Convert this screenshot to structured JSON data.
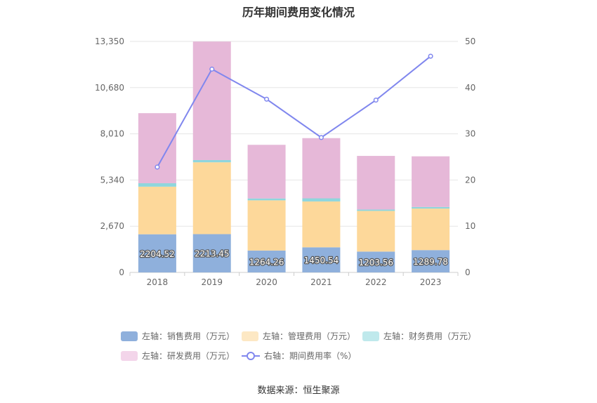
{
  "chart_data": {
    "type": "bar",
    "title": "历年期间费用变化情况",
    "categories": [
      "2018",
      "2019",
      "2020",
      "2021",
      "2022",
      "2023"
    ],
    "y_left": {
      "ticks": [
        "0",
        "2,670",
        "5,340",
        "8,010",
        "10,680",
        "13,350"
      ],
      "range": [
        0,
        13350
      ]
    },
    "y_right": {
      "ticks": [
        "0",
        "10",
        "20",
        "30",
        "40",
        "50"
      ],
      "range": [
        0,
        50
      ]
    },
    "series": [
      {
        "name": "左轴：销售费用（万元）",
        "color": "#8fb0dc",
        "axis": "left",
        "stack": "cost",
        "values": [
          2204.52,
          2213.45,
          1264.26,
          1450.54,
          1203.56,
          1289.78
        ],
        "labels": [
          "2204.52",
          "2213.45",
          "1264.26",
          "1450.54",
          "1203.56",
          "1289.78"
        ]
      },
      {
        "name": "左轴：管理费用（万元）",
        "color": "#fdd89a",
        "axis": "left",
        "stack": "cost",
        "values": [
          2750,
          4150,
          2900,
          2650,
          2350,
          2400
        ]
      },
      {
        "name": "左轴：财务费用（万元）",
        "color": "#8fd6dc",
        "axis": "left",
        "stack": "cost",
        "values": [
          200,
          130,
          110,
          180,
          80,
          90
        ]
      },
      {
        "name": "左轴：研发费用（万元）",
        "color": "#e6b8d8",
        "axis": "left",
        "stack": "cost",
        "values": [
          4050,
          6850,
          3100,
          3480,
          3100,
          2930
        ]
      },
      {
        "name": "右轴：期间费用率（%）",
        "color": "#8087ee",
        "axis": "right",
        "type": "line",
        "values": [
          22.8,
          44.0,
          37.5,
          29.2,
          37.3,
          46.8
        ]
      }
    ],
    "legend_position": "bottom",
    "grid": true
  },
  "legend": [
    {
      "label": "左轴：销售费用（万元）",
      "color": "#8fb0dc",
      "kind": "box"
    },
    {
      "label": "左轴：管理费用（万元）",
      "color": "#fde8c4",
      "kind": "box"
    },
    {
      "label": "左轴：财务费用（万元）",
      "color": "#bfe9ec",
      "kind": "box"
    },
    {
      "label": "左轴：研发费用（万元）",
      "color": "#f3d5ea",
      "kind": "box"
    },
    {
      "label": "右轴：期间费用率（%）",
      "color": "#8087ee",
      "kind": "line"
    }
  ],
  "source": "数据来源：恒生聚源"
}
